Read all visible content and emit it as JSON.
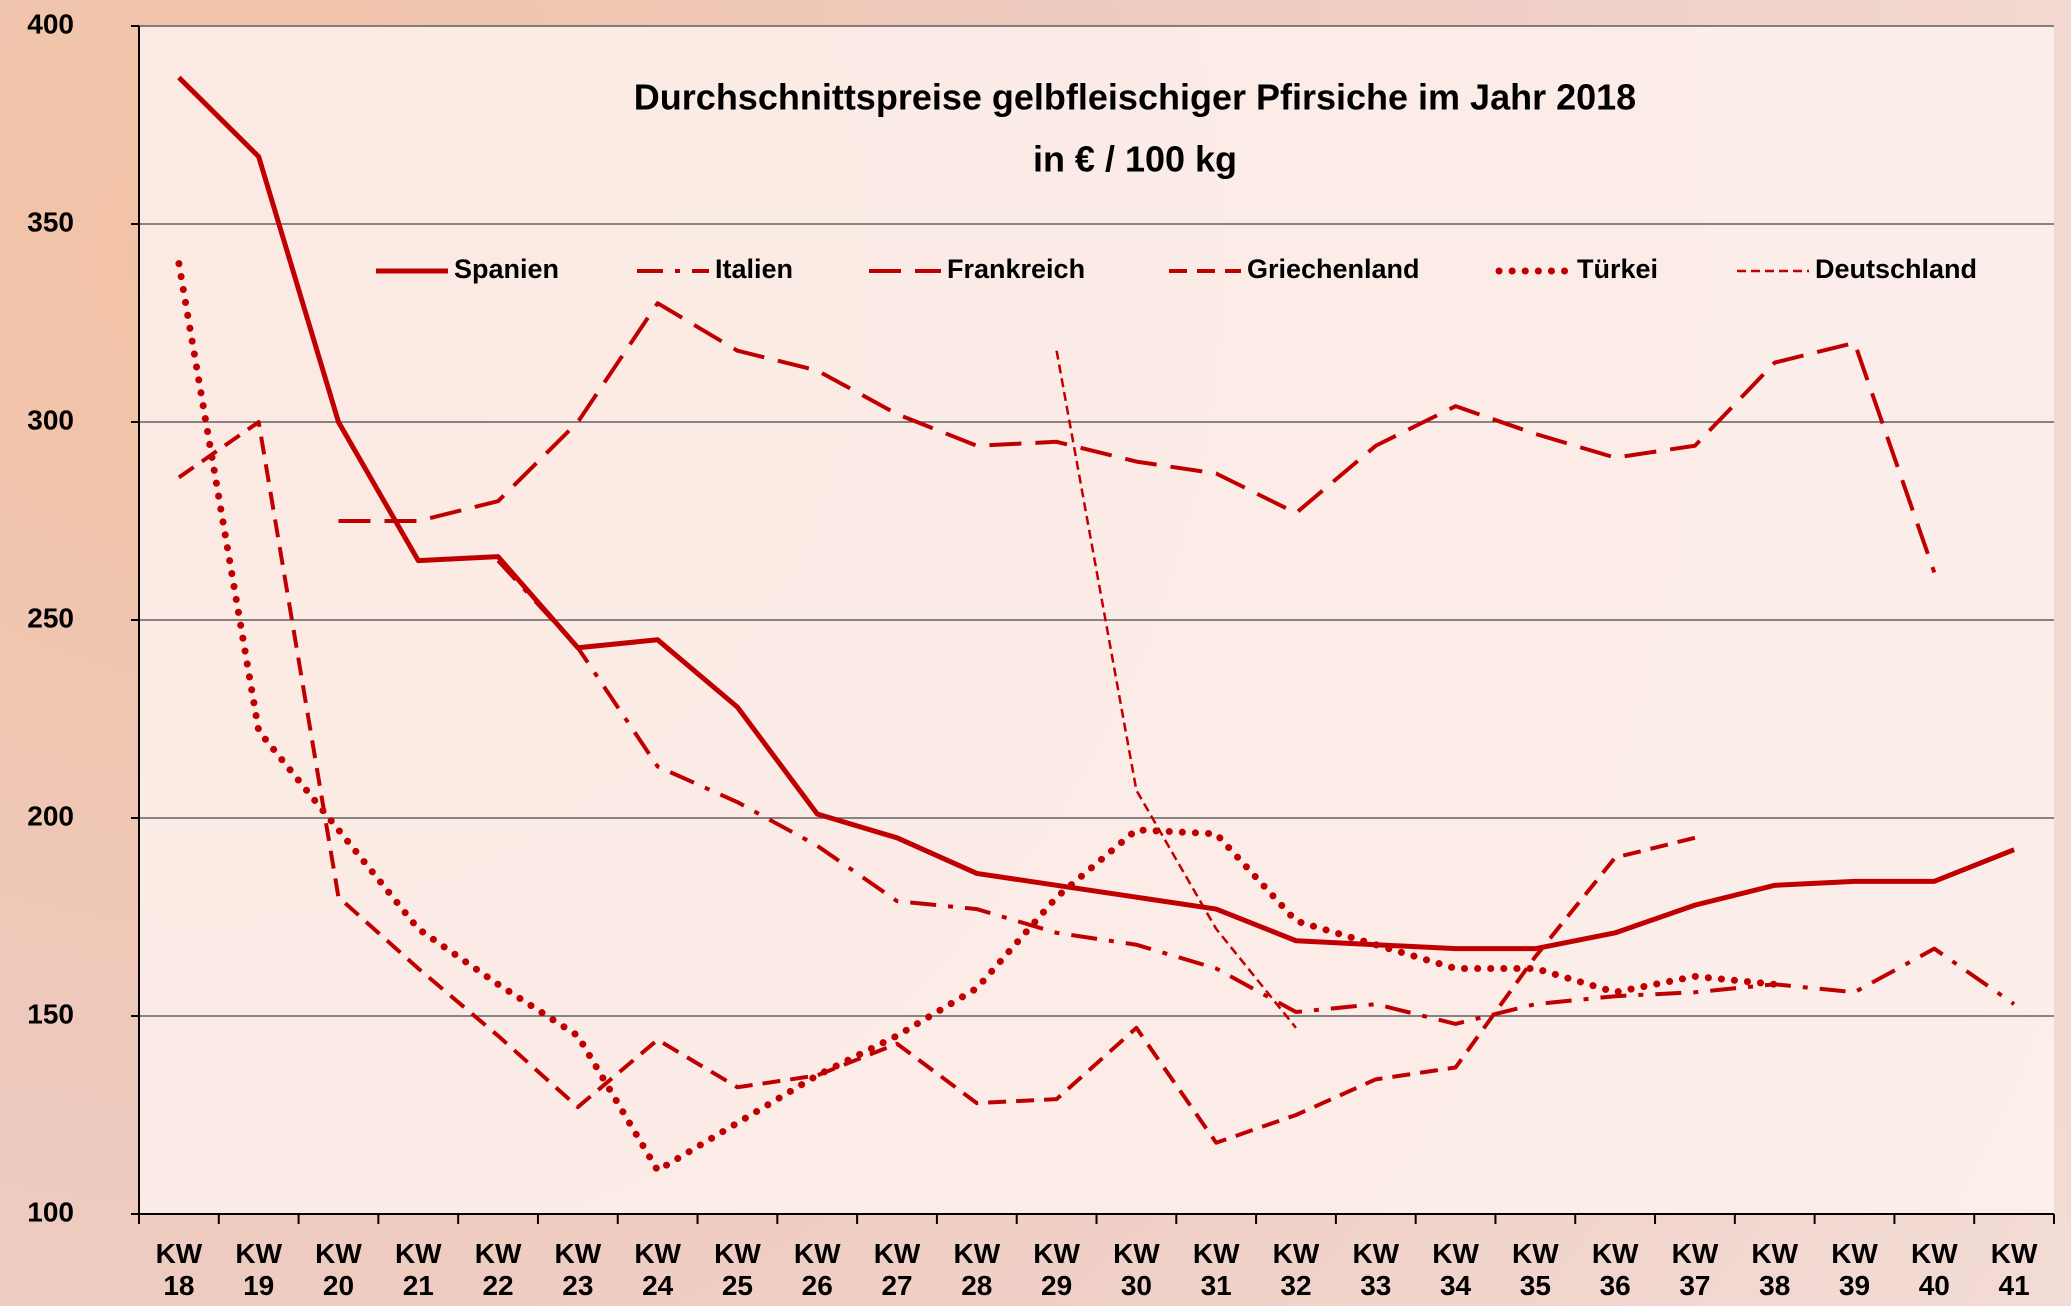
{
  "chart_data": {
    "type": "line",
    "title": "Durchschnittspreise gelbfleischiger Pfirsiche im Jahr 2018",
    "subtitle": "in € / 100 kg",
    "categories": [
      "KW 18",
      "KW 19",
      "KW 20",
      "KW 21",
      "KW 22",
      "KW 23",
      "KW 24",
      "KW 25",
      "KW 26",
      "KW 27",
      "KW 28",
      "KW 29",
      "KW 30",
      "KW 31",
      "KW 32",
      "KW 33",
      "KW 34",
      "KW 35",
      "KW 36",
      "KW 37",
      "KW 38",
      "KW 39",
      "KW 40",
      "KW 41"
    ],
    "series": [
      {
        "name": "Spanien",
        "color": "#c00000",
        "dash": "solid",
        "values": [
          387,
          367,
          300,
          265,
          266,
          243,
          245,
          228,
          201,
          195,
          186,
          183,
          180,
          177,
          169,
          168,
          167,
          167,
          171,
          178,
          183,
          184,
          184,
          192
        ]
      },
      {
        "name": "Italien",
        "color": "#c00000",
        "dash": "dashdot",
        "values": [
          null,
          null,
          null,
          null,
          265,
          243,
          213,
          204,
          193,
          179,
          177,
          171,
          168,
          162,
          151,
          153,
          148,
          153,
          155,
          156,
          158,
          156,
          167,
          153
        ]
      },
      {
        "name": "Frankreich",
        "color": "#c00000",
        "dash": "longdash",
        "values": [
          null,
          null,
          275,
          275,
          280,
          300,
          330,
          318,
          313,
          302,
          294,
          295,
          290,
          287,
          277,
          294,
          304,
          297,
          291,
          294,
          315,
          320,
          262,
          null
        ]
      },
      {
        "name": "Griechenland",
        "color": "#c00000",
        "dash": "dash",
        "values": [
          286,
          300,
          180,
          162,
          145,
          127,
          144,
          132,
          135,
          143,
          128,
          129,
          147,
          118,
          125,
          134,
          137,
          165,
          190,
          195,
          null,
          null,
          null,
          null
        ]
      },
      {
        "name": "Türkei",
        "color": "#c00000",
        "dash": "dot",
        "values": [
          340,
          222,
          197,
          172,
          158,
          145,
          111,
          123,
          135,
          145,
          157,
          180,
          197,
          196,
          174,
          168,
          162,
          162,
          156,
          160,
          158,
          null,
          null,
          null
        ]
      },
      {
        "name": "Deutschland",
        "color": "#c00000",
        "dash": "thindash",
        "values": [
          null,
          null,
          null,
          null,
          null,
          null,
          null,
          null,
          null,
          null,
          null,
          318,
          207,
          172,
          147,
          null,
          null,
          null,
          null,
          null,
          null,
          null,
          null,
          null
        ]
      }
    ],
    "ylim": [
      100,
      400
    ],
    "yticks": [
      100,
      150,
      200,
      250,
      300,
      350,
      400
    ],
    "grid": true
  }
}
